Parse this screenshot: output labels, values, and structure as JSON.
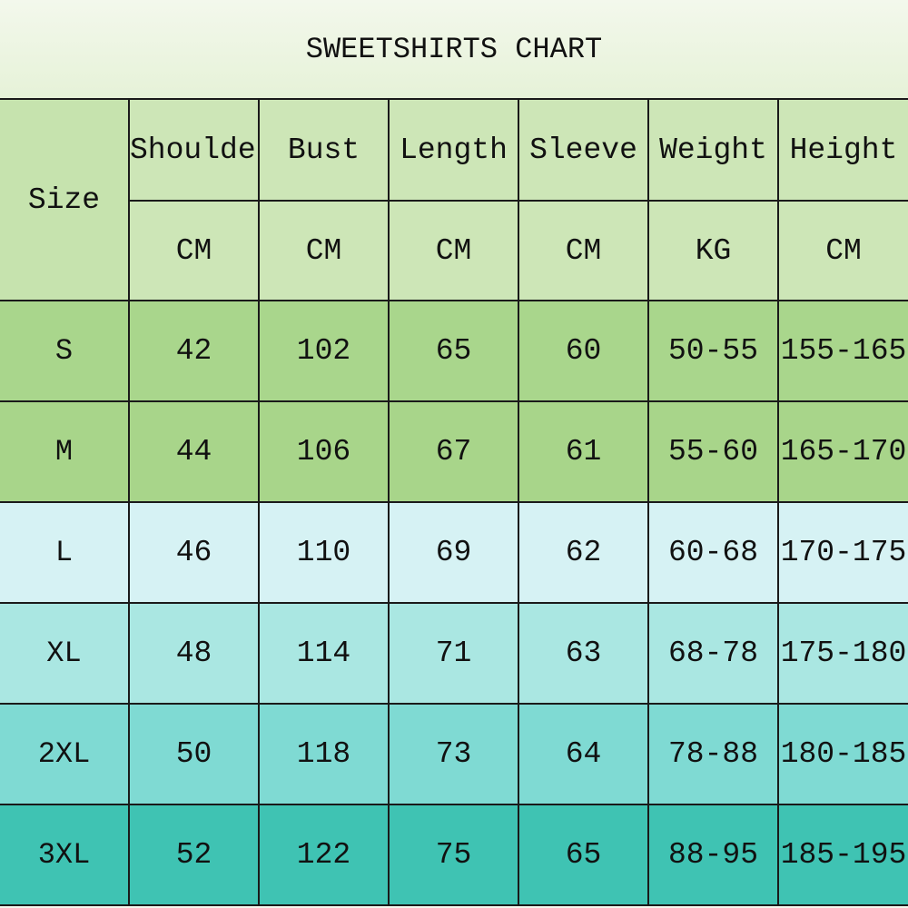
{
  "title": "SWEETSHIRTS CHART",
  "size_header": "Size",
  "columns": [
    {
      "name": "Shoulder",
      "unit": "CM"
    },
    {
      "name": "Bust",
      "unit": "CM"
    },
    {
      "name": "Length",
      "unit": "CM"
    },
    {
      "name": "Sleeve",
      "unit": "CM"
    },
    {
      "name": "Weight",
      "unit": "KG"
    },
    {
      "name": "Height",
      "unit": "CM"
    }
  ],
  "rows": [
    {
      "size": "S",
      "values": [
        "42",
        "102",
        "65",
        "60",
        "50-55",
        "155-165"
      ],
      "color": "#a9d68c"
    },
    {
      "size": "M",
      "values": [
        "44",
        "106",
        "67",
        "61",
        "55-60",
        "165-170"
      ],
      "color": "#a8d58a"
    },
    {
      "size": "L",
      "values": [
        "46",
        "110",
        "69",
        "62",
        "60-68",
        "170-175"
      ],
      "color": "#d6f2f4"
    },
    {
      "size": "XL",
      "values": [
        "48",
        "114",
        "71",
        "63",
        "68-78",
        "175-180"
      ],
      "color": "#aae7e2"
    },
    {
      "size": "2XL",
      "values": [
        "50",
        "118",
        "73",
        "64",
        "78-88",
        "180-185"
      ],
      "color": "#7fdad3"
    },
    {
      "size": "3XL",
      "values": [
        "52",
        "122",
        "75",
        "65",
        "88-95",
        "185-195"
      ],
      "color": "#3fc3b3"
    }
  ]
}
